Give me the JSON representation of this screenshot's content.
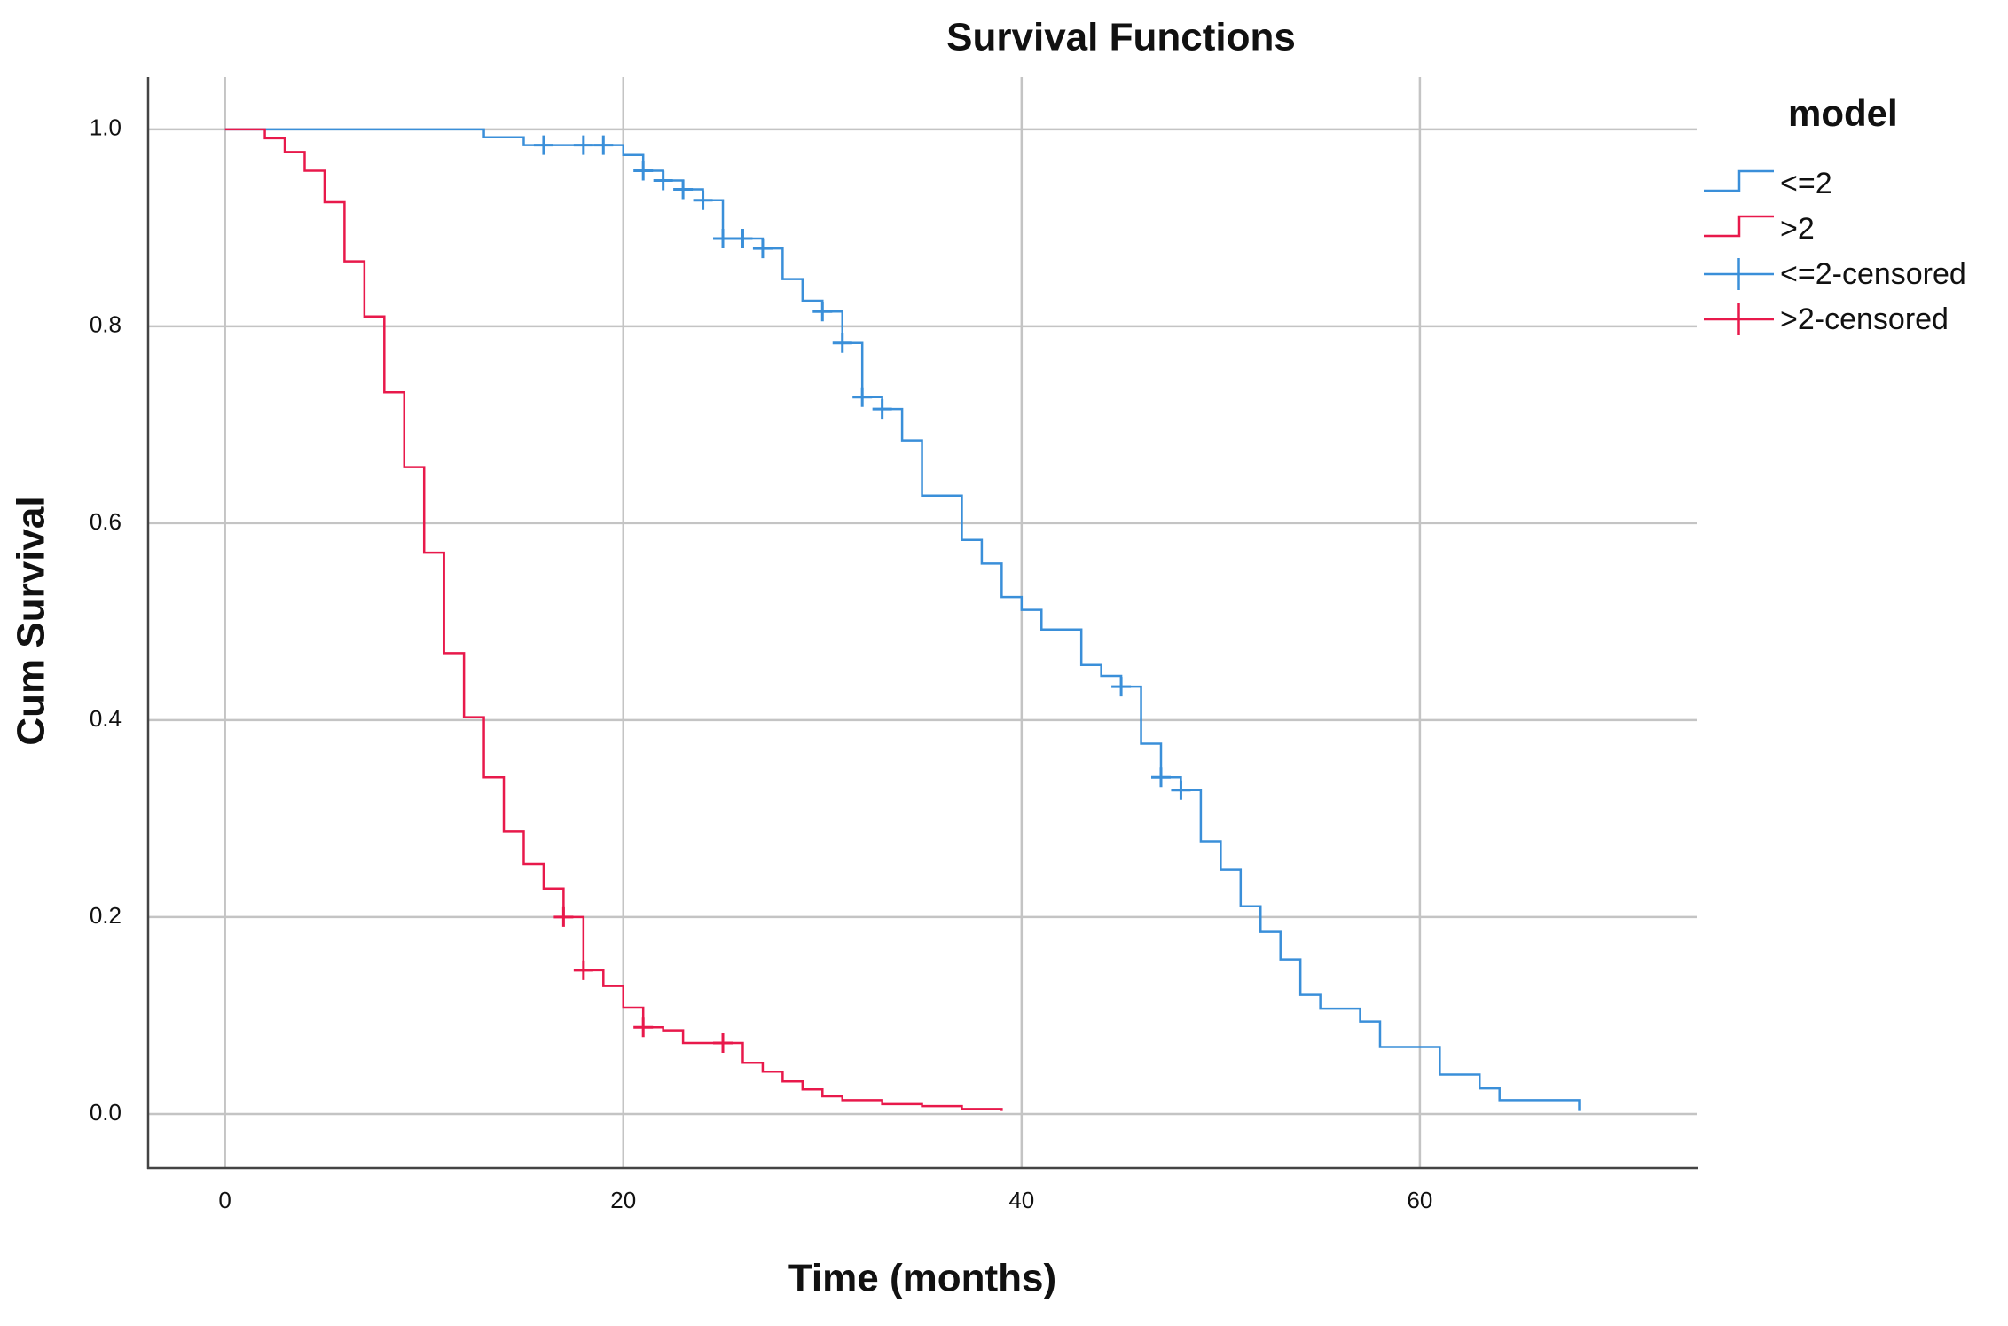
{
  "chart_data": {
    "type": "survival",
    "title": "Survival Functions",
    "x_label": "Time (months)",
    "y_label": "Cum Survival",
    "legend_title": "model",
    "xlim": [
      -3.86,
      73.9
    ],
    "ylim": [
      -0.055,
      1.053
    ],
    "xticks": [
      0,
      20,
      40,
      60
    ],
    "yticks": [
      {
        "value": 0,
        "label": "0.0"
      },
      0.2,
      0.4,
      0.6,
      0.8,
      {
        "value": 1,
        "label": "1.0"
      }
    ],
    "grid": true,
    "series": [
      {
        "name": "<=2",
        "color": "#3a8fd9",
        "mark": "step",
        "x": [
          0,
          13,
          15,
          20,
          21,
          22,
          23,
          24,
          25,
          27,
          28,
          29,
          30,
          31,
          32,
          33,
          34,
          35,
          37,
          38,
          39,
          40,
          41,
          43,
          44,
          45,
          46,
          47,
          48,
          49,
          50,
          51,
          52,
          53,
          54,
          55,
          57,
          58,
          61,
          63,
          64,
          68
        ],
        "values": [
          1,
          0.992,
          0.984,
          0.974,
          0.958,
          0.948,
          0.939,
          0.928,
          0.889,
          0.879,
          0.848,
          0.826,
          0.815,
          0.783,
          0.728,
          0.716,
          0.684,
          0.628,
          0.583,
          0.559,
          0.525,
          0.512,
          0.492,
          0.456,
          0.445,
          0.434,
          0.376,
          0.342,
          0.329,
          0.277,
          0.248,
          0.211,
          0.185,
          0.157,
          0.121,
          0.107,
          0.094,
          0.068,
          0.04,
          0.026,
          0.014,
          0.003
        ]
      },
      {
        "name": ">2",
        "color": "#e8194b",
        "mark": "step",
        "x": [
          0,
          2,
          3,
          4,
          5,
          6,
          7,
          8,
          9,
          10,
          11,
          12,
          13,
          14,
          15,
          16,
          17,
          18,
          19,
          20,
          21,
          22,
          23,
          26,
          27,
          28,
          29,
          30,
          31,
          33,
          35,
          37,
          39
        ],
        "values": [
          1,
          0.991,
          0.977,
          0.958,
          0.926,
          0.866,
          0.81,
          0.733,
          0.657,
          0.57,
          0.468,
          0.403,
          0.342,
          0.287,
          0.254,
          0.229,
          0.2,
          0.146,
          0.13,
          0.108,
          0.088,
          0.085,
          0.072,
          0.052,
          0.043,
          0.033,
          0.025,
          0.018,
          0.014,
          0.01,
          0.008,
          0.005,
          0.003
        ]
      },
      {
        "name": "<=2-censored",
        "color": "#3a8fd9",
        "mark": "plus",
        "x": [
          16,
          18,
          19,
          21,
          22,
          23,
          24,
          25,
          26,
          27,
          30,
          31,
          32,
          33,
          45,
          47,
          48
        ],
        "values": [
          0.984,
          0.984,
          0.984,
          0.958,
          0.948,
          0.939,
          0.928,
          0.889,
          0.889,
          0.879,
          0.815,
          0.783,
          0.728,
          0.716,
          0.434,
          0.342,
          0.329
        ]
      },
      {
        "name": ">2-censored",
        "color": "#e8194b",
        "mark": "plus",
        "x": [
          17,
          18,
          21,
          25
        ],
        "values": [
          0.2,
          0.146,
          0.088,
          0.072
        ]
      }
    ]
  }
}
